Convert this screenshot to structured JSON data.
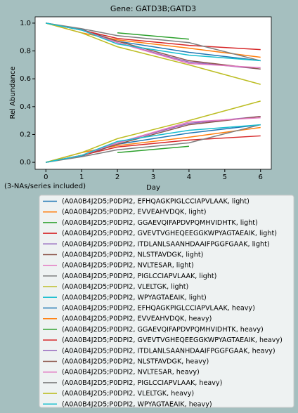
{
  "chart_data": {
    "type": "line",
    "title": "Gene: GATD3B;GATD3",
    "xlabel": "Day",
    "ylabel": "Rel Abundance",
    "annotation": "(3-NAs/series included)",
    "x": [
      0,
      1,
      2,
      4,
      6
    ],
    "xlim": [
      -0.3,
      6.3
    ],
    "xticks": [
      0,
      1,
      2,
      3,
      4,
      5,
      6
    ],
    "ylim": [
      -0.05,
      1.045
    ],
    "yticks": [
      {
        "value": 0,
        "label": "0.0"
      },
      {
        "value": 0.2,
        "label": "0.2"
      },
      {
        "value": 0.4,
        "label": "0.4"
      },
      {
        "value": 0.6,
        "label": "0.6"
      },
      {
        "value": 0.8,
        "label": "0.8"
      },
      {
        "value": 1,
        "label": "1.0"
      }
    ],
    "legend": "below",
    "series": [
      {
        "name": "(A0A0B4J2D5;P0DPI2, EFHQAGKPIGLCCIAPVLAAK, light)",
        "color": "#1f77b4",
        "values": [
          1.0,
          0.955,
          0.87,
          0.79,
          0.73
        ]
      },
      {
        "name": "(A0A0B4J2D5;P0DPI2, EVVEAHVDQK, light)",
        "color": "#ff7f0e",
        "values": [
          1.0,
          0.93,
          0.88,
          0.82,
          0.755
        ]
      },
      {
        "name": "(A0A0B4J2D5;P0DPI2, GGAEVQIFAPDVPQMHVIDHTK, light)",
        "color": "#2ca02c",
        "values": [
          null,
          null,
          0.93,
          0.885,
          null
        ]
      },
      {
        "name": "(A0A0B4J2D5;P0DPI2, GVEVTVGHEQEEGGKWPYAGTAEAIK, light)",
        "color": "#d62728",
        "values": [
          1.0,
          0.95,
          0.89,
          0.84,
          0.81
        ]
      },
      {
        "name": "(A0A0B4J2D5;P0DPI2, ITDLANLSAANHDAAIFPGGFGAAK, light)",
        "color": "#9467bd",
        "values": [
          1.0,
          0.95,
          0.86,
          0.72,
          0.67
        ]
      },
      {
        "name": "(A0A0B4J2D5;P0DPI2, NLSTFAVDGK, light)",
        "color": "#8c564b",
        "values": [
          1.0,
          0.95,
          0.87,
          0.73,
          0.67
        ]
      },
      {
        "name": "(A0A0B4J2D5;P0DPI2, NVLTESAR, light)",
        "color": "#e377c2",
        "values": [
          1.0,
          0.95,
          0.86,
          0.71,
          0.68
        ]
      },
      {
        "name": "(A0A0B4J2D5;P0DPI2, PIGLCCIAPVLAAK, light)",
        "color": "#7f7f7f",
        "values": [
          1.0,
          0.96,
          0.91,
          0.86,
          0.73
        ]
      },
      {
        "name": "(A0A0B4J2D5;P0DPI2, VLELTGK, light)",
        "color": "#bcbd22",
        "values": [
          1.0,
          0.93,
          0.83,
          0.7,
          0.56
        ]
      },
      {
        "name": "(A0A0B4J2D5;P0DPI2, WPYAGTAEAIK, light)",
        "color": "#17becf",
        "values": [
          1.0,
          0.95,
          0.85,
          0.77,
          0.73
        ]
      },
      {
        "name": "(A0A0B4J2D5;P0DPI2, EFHQAGKPIGLCCIAPVLAAK, heavy)",
        "color": "#1f77b4",
        "values": [
          0.0,
          0.045,
          0.13,
          0.21,
          0.27
        ]
      },
      {
        "name": "(A0A0B4J2D5;P0DPI2, EVVEAHVDQK, heavy)",
        "color": "#ff7f0e",
        "values": [
          0.0,
          0.07,
          0.12,
          0.18,
          0.25
        ]
      },
      {
        "name": "(A0A0B4J2D5;P0DPI2, GGAEVQIFAPDVPQMHVIDHTK, heavy)",
        "color": "#2ca02c",
        "values": [
          null,
          null,
          0.07,
          0.115,
          null
        ]
      },
      {
        "name": "(A0A0B4J2D5;P0DPI2, GVEVTVGHEQEEGGKWPYAGTAEAIK, heavy)",
        "color": "#d62728",
        "values": [
          0.0,
          0.05,
          0.11,
          0.16,
          0.19
        ]
      },
      {
        "name": "(A0A0B4J2D5;P0DPI2, ITDLANLSAANHDAAIFPGGFGAAK, heavy)",
        "color": "#9467bd",
        "values": [
          0.0,
          0.05,
          0.14,
          0.28,
          0.33
        ]
      },
      {
        "name": "(A0A0B4J2D5;P0DPI2, NLSTFAVDGK, heavy)",
        "color": "#8c564b",
        "values": [
          0.0,
          0.05,
          0.13,
          0.27,
          0.33
        ]
      },
      {
        "name": "(A0A0B4J2D5;P0DPI2, NVLTESAR, heavy)",
        "color": "#e377c2",
        "values": [
          0.0,
          0.05,
          0.14,
          0.29,
          0.32
        ]
      },
      {
        "name": "(A0A0B4J2D5;P0DPI2, PIGLCCIAPVLAAK, heavy)",
        "color": "#7f7f7f",
        "values": [
          0.0,
          0.04,
          0.09,
          0.14,
          0.27
        ]
      },
      {
        "name": "(A0A0B4J2D5;P0DPI2, VLELTGK, heavy)",
        "color": "#bcbd22",
        "values": [
          0.0,
          0.07,
          0.17,
          0.3,
          0.44
        ]
      },
      {
        "name": "(A0A0B4J2D5;P0DPI2, WPYAGTAEAIK, heavy)",
        "color": "#17becf",
        "values": [
          0.0,
          0.05,
          0.15,
          0.23,
          0.27
        ]
      }
    ]
  }
}
